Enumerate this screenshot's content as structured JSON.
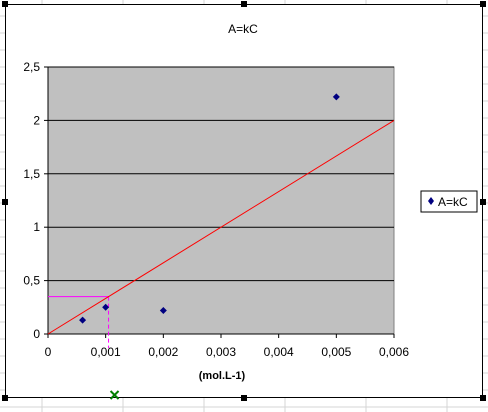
{
  "colors": {
    "plot_background": "#c0c0c0",
    "gridline": "#000000",
    "marker": "#000080",
    "trendline": "#ff0000",
    "guide_line": "#ff00ff",
    "cursor_mark": "#008000"
  },
  "cursor_icon": "green-x-mark-icon",
  "chart_data": {
    "type": "scatter",
    "title": "A=kC",
    "xlabel": "(mol.L-1)",
    "ylabel": "",
    "xlim": [
      0,
      0.006
    ],
    "ylim": [
      0,
      2.5
    ],
    "grid": true,
    "legend_position": "right",
    "x_tick_labels": [
      "0",
      "0,001",
      "0,002",
      "0,003",
      "0,004",
      "0,005",
      "0,006"
    ],
    "y_tick_labels": [
      "0",
      "0,5",
      "1",
      "1,5",
      "2",
      "2,5"
    ],
    "series": [
      {
        "name": "A=kC",
        "points": [
          {
            "x": 0.0006,
            "y": 0.13
          },
          {
            "x": 0.001,
            "y": 0.25
          },
          {
            "x": 0.002,
            "y": 0.22
          },
          {
            "x": 0.005,
            "y": 2.22
          }
        ]
      }
    ],
    "trendline": {
      "from": {
        "x": 0,
        "y": 0
      },
      "to": {
        "x": 0.006,
        "y": 2.0
      }
    },
    "guide": {
      "x": 0.00105,
      "y": 0.35
    }
  }
}
